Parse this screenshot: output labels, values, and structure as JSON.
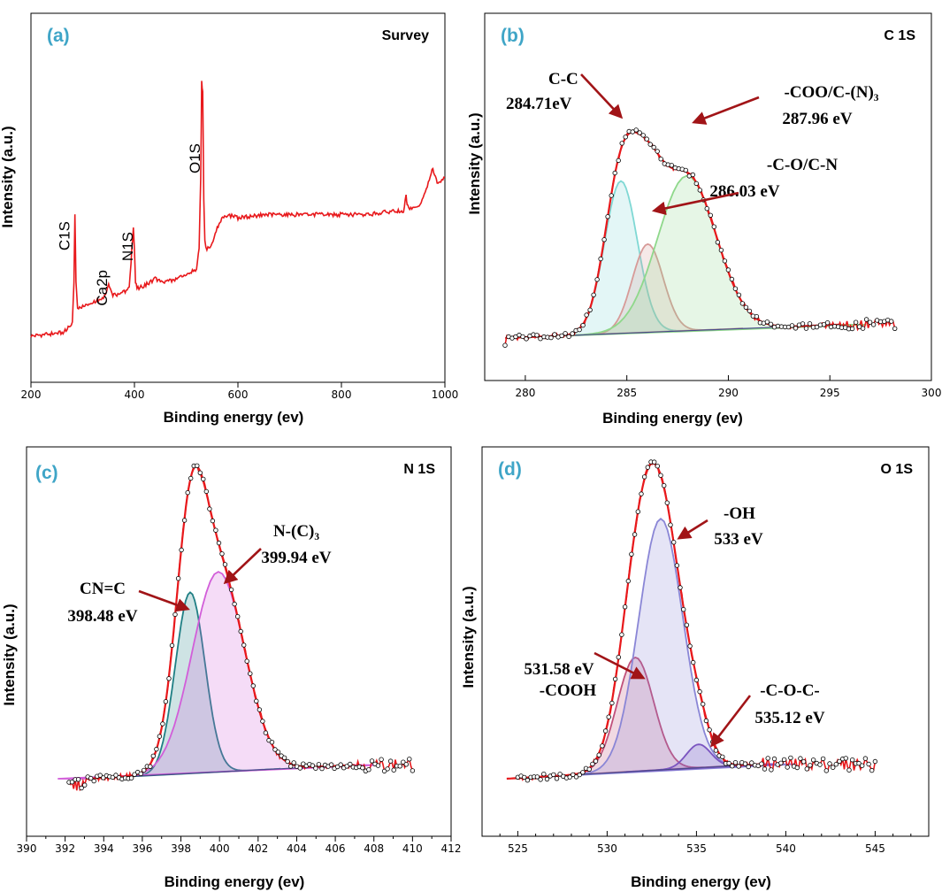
{
  "chart_data": [
    {
      "type": "line",
      "panel_label": "(a)",
      "corner_label": "Survey",
      "xlabel": "Binding  energy (ev)",
      "ylabel": "Intensity (a.u.)",
      "xlim": [
        200,
        1000
      ],
      "xticks": [
        200,
        400,
        600,
        800,
        1000
      ],
      "series": [
        {
          "color": "#e8191c",
          "x": [
            200,
            230,
            260,
            270,
            280,
            283,
            285,
            287,
            290,
            300,
            320,
            340,
            350,
            355,
            360,
            380,
            390,
            395,
            398,
            400,
            402,
            405,
            420,
            440,
            450,
            460,
            480,
            500,
            520,
            525,
            528,
            530,
            532,
            534,
            536,
            540,
            550,
            560,
            565,
            580,
            600,
            650,
            700,
            750,
            800,
            850,
            900,
            920,
            925,
            927,
            930,
            940,
            950,
            960,
            970,
            975,
            980,
            985,
            990,
            1000
          ],
          "y": [
            0.04,
            0.045,
            0.05,
            0.06,
            0.08,
            0.2,
            0.4,
            0.2,
            0.12,
            0.13,
            0.14,
            0.15,
            0.19,
            0.17,
            0.16,
            0.17,
            0.18,
            0.3,
            0.36,
            0.3,
            0.2,
            0.18,
            0.19,
            0.21,
            0.2,
            0.2,
            0.21,
            0.22,
            0.24,
            0.3,
            0.5,
            0.8,
            0.76,
            0.45,
            0.32,
            0.3,
            0.31,
            0.36,
            0.38,
            0.4,
            0.39,
            0.4,
            0.4,
            0.4,
            0.4,
            0.4,
            0.41,
            0.41,
            0.46,
            0.43,
            0.42,
            0.42,
            0.42,
            0.46,
            0.5,
            0.54,
            0.52,
            0.49,
            0.5,
            0.51
          ]
        }
      ],
      "annotations": [
        {
          "text": "C1S",
          "x": 285
        },
        {
          "text": "Ca2p",
          "x": 350
        },
        {
          "text": "N1S",
          "x": 400
        },
        {
          "text": "O1S",
          "x": 532
        }
      ]
    },
    {
      "type": "line",
      "panel_label": "(b)",
      "corner_label": "C 1S",
      "xlabel": "Binding  energy (ev)",
      "ylabel": "Intensity (a.u.)",
      "xlim": [
        278,
        300
      ],
      "xticks": [
        280,
        285,
        290,
        295,
        300
      ],
      "envelope_color": "#e8191c",
      "peaks": [
        {
          "label": "C-C",
          "value": "284.71eV",
          "center": 284.71,
          "height": 0.57,
          "fwhm": 1.9,
          "color": "#7fd8d4"
        },
        {
          "label": "-C-O/C-N",
          "value": "286.03 eV",
          "center": 286.03,
          "height": 0.33,
          "fwhm": 1.8,
          "color": "#d79a98"
        },
        {
          "label": "-COO/C-(N)₃",
          "value": "287.96 eV",
          "center": 287.96,
          "height": 0.58,
          "fwhm": 3.4,
          "color": "#8fd88b"
        }
      ]
    },
    {
      "type": "line",
      "panel_label": "(c)",
      "corner_label": "N 1S",
      "xlabel": "Binding  energy (ev)",
      "ylabel": "Intensity (a.u.)",
      "xlim": [
        390,
        412
      ],
      "xticks": [
        390,
        392,
        394,
        396,
        398,
        400,
        402,
        404,
        406,
        408,
        410,
        412
      ],
      "envelope_color": "#e8191c",
      "peaks": [
        {
          "label": "CN=C",
          "value": "398.48 eV",
          "center": 398.48,
          "height": 0.66,
          "fwhm": 1.8,
          "color": "#1f7f84"
        },
        {
          "label": "N-(C)₃",
          "value": "399.94 eV",
          "center": 399.94,
          "height": 0.73,
          "fwhm": 3.2,
          "color": "#d25ed9"
        }
      ]
    },
    {
      "type": "line",
      "panel_label": "(d)",
      "corner_label": "O 1S",
      "xlabel": "Binding  energy (ev)",
      "ylabel": "Intensity (a.u.)",
      "xlim": [
        523,
        548
      ],
      "xticks": [
        525,
        530,
        535,
        540,
        545
      ],
      "envelope_color": "#e8191c",
      "peaks": [
        {
          "label": "-COOH",
          "value": "531.58 eV",
          "center": 531.58,
          "height": 0.39,
          "fwhm": 2.4,
          "color": "#c0507a"
        },
        {
          "label": "-OH",
          "value": "533 eV",
          "center": 533,
          "height": 0.86,
          "fwhm": 2.9,
          "color": "#8a86d6"
        },
        {
          "label": "-C-O-C-",
          "value": "535.12 eV",
          "center": 535.12,
          "height": 0.08,
          "fwhm": 1.6,
          "color": "#7b55c0"
        }
      ]
    }
  ]
}
